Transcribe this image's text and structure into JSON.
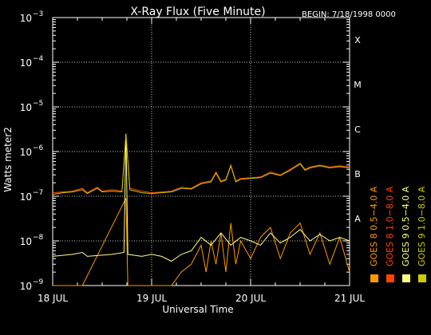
{
  "chart_data": {
    "type": "line",
    "title": "X-Ray Flux (Five Minute)",
    "begin_label": "BEGIN: 7/18/1998 0000",
    "ylabel": "Watts meter2",
    "xlabel": "Universal Time",
    "yscale": "log",
    "ylim": [
      1e-09,
      0.001
    ],
    "xlim": [
      0,
      3
    ],
    "x_ticks": [
      {
        "value": 0,
        "label": "18 JUL"
      },
      {
        "value": 1,
        "label": "19 JUL"
      },
      {
        "value": 2,
        "label": "20 JUL"
      },
      {
        "value": 3,
        "label": "21 JUL"
      }
    ],
    "y_ticks": [
      {
        "exp": -9,
        "base": "10",
        "sup": "−9"
      },
      {
        "exp": -8,
        "base": "10",
        "sup": "−8"
      },
      {
        "exp": -7,
        "base": "10",
        "sup": "−7"
      },
      {
        "exp": -6,
        "base": "10",
        "sup": "−6"
      },
      {
        "exp": -5,
        "base": "10",
        "sup": "−5"
      },
      {
        "exp": -4,
        "base": "10",
        "sup": "−4"
      },
      {
        "exp": -3,
        "base": "10",
        "sup": "−3"
      }
    ],
    "flare_classes": [
      {
        "label": "A",
        "exp": -8
      },
      {
        "label": "B",
        "exp": -7
      },
      {
        "label": "C",
        "exp": -6
      },
      {
        "label": "M",
        "exp": -5
      },
      {
        "label": "X",
        "exp": -4
      }
    ],
    "grid": "dotted",
    "series": [
      {
        "name": "GOES 8 1.0−8.0 A",
        "color": "#ff4400",
        "points": [
          [
            0,
            1.2e-07
          ],
          [
            0.1,
            1.25e-07
          ],
          [
            0.2,
            1.3e-07
          ],
          [
            0.3,
            1.5e-07
          ],
          [
            0.35,
            1.2e-07
          ],
          [
            0.45,
            1.6e-07
          ],
          [
            0.5,
            1.3e-07
          ],
          [
            0.6,
            1.4e-07
          ],
          [
            0.7,
            1.3e-07
          ],
          [
            0.74,
            2.5e-06
          ],
          [
            0.78,
            1.5e-07
          ],
          [
            0.9,
            1.3e-07
          ],
          [
            1.0,
            1.2e-07
          ],
          [
            1.1,
            1.25e-07
          ],
          [
            1.2,
            1.3e-07
          ],
          [
            1.3,
            1.6e-07
          ],
          [
            1.4,
            1.5e-07
          ],
          [
            1.5,
            2e-07
          ],
          [
            1.6,
            2.2e-07
          ],
          [
            1.65,
            3.5e-07
          ],
          [
            1.7,
            2.2e-07
          ],
          [
            1.75,
            2.4e-07
          ],
          [
            1.8,
            5e-07
          ],
          [
            1.85,
            2.2e-07
          ],
          [
            1.9,
            2.5e-07
          ],
          [
            2.0,
            2.6e-07
          ],
          [
            2.1,
            2.7e-07
          ],
          [
            2.2,
            3.5e-07
          ],
          [
            2.3,
            3e-07
          ],
          [
            2.4,
            4e-07
          ],
          [
            2.5,
            5.5e-07
          ],
          [
            2.55,
            4e-07
          ],
          [
            2.6,
            4.5e-07
          ],
          [
            2.7,
            5e-07
          ],
          [
            2.8,
            4.5e-07
          ],
          [
            2.9,
            4.8e-07
          ],
          [
            3.0,
            4.5e-07
          ]
        ]
      },
      {
        "name": "GOES 8 0.5−4.0 A",
        "color": "#ff9900",
        "points": [
          [
            0,
            1e-09
          ],
          [
            0.3,
            1e-09
          ],
          [
            0.74,
            9e-08
          ],
          [
            0.76,
            1e-09
          ],
          [
            1.0,
            1e-09
          ],
          [
            1.2,
            1e-09
          ],
          [
            1.3,
            2e-09
          ],
          [
            1.4,
            3e-09
          ],
          [
            1.5,
            8e-09
          ],
          [
            1.55,
            2e-09
          ],
          [
            1.6,
            1e-08
          ],
          [
            1.65,
            3e-09
          ],
          [
            1.7,
            1.5e-08
          ],
          [
            1.75,
            2e-09
          ],
          [
            1.8,
            2.5e-08
          ],
          [
            1.85,
            3e-09
          ],
          [
            1.9,
            1e-08
          ],
          [
            2.0,
            4e-09
          ],
          [
            2.1,
            1.2e-08
          ],
          [
            2.2,
            2e-08
          ],
          [
            2.3,
            4e-09
          ],
          [
            2.4,
            1.5e-08
          ],
          [
            2.5,
            2.5e-08
          ],
          [
            2.6,
            5e-09
          ],
          [
            2.7,
            1.5e-08
          ],
          [
            2.8,
            3e-09
          ],
          [
            2.9,
            1.2e-08
          ],
          [
            3.0,
            2e-09
          ]
        ]
      },
      {
        "name": "GOES 9 0.5−4.0 A",
        "color": "#ffff88",
        "points": [
          [
            0,
            4.5e-09
          ],
          [
            0.2,
            5e-09
          ],
          [
            0.3,
            5.5e-09
          ],
          [
            0.35,
            4.5e-09
          ],
          [
            0.5,
            4.8e-09
          ],
          [
            0.6,
            5e-09
          ],
          [
            0.72,
            5.5e-09
          ],
          [
            0.74,
            2.5e-06
          ],
          [
            0.76,
            5e-09
          ],
          [
            0.9,
            4.5e-09
          ],
          [
            1.0,
            5e-09
          ],
          [
            1.1,
            4.5e-09
          ],
          [
            1.2,
            3.5e-09
          ],
          [
            1.3,
            5e-09
          ],
          [
            1.4,
            6e-09
          ],
          [
            1.5,
            1.2e-08
          ],
          [
            1.6,
            8e-09
          ],
          [
            1.7,
            1.5e-08
          ],
          [
            1.8,
            8e-09
          ],
          [
            1.9,
            1.2e-08
          ],
          [
            2.0,
            1e-08
          ],
          [
            2.1,
            8e-09
          ],
          [
            2.2,
            1.5e-08
          ],
          [
            2.3,
            9e-09
          ],
          [
            2.4,
            1.2e-08
          ],
          [
            2.5,
            1.8e-08
          ],
          [
            2.6,
            1e-08
          ],
          [
            2.7,
            1.4e-08
          ],
          [
            2.8,
            1e-08
          ],
          [
            2.9,
            1.2e-08
          ],
          [
            3.0,
            1e-08
          ]
        ]
      },
      {
        "name": "GOES 9 1.0−8.0 A",
        "color": "#cccc00",
        "points": [
          [
            0,
            1.1e-07
          ],
          [
            0.1,
            1.2e-07
          ],
          [
            0.2,
            1.25e-07
          ],
          [
            0.3,
            1.4e-07
          ],
          [
            0.35,
            1.15e-07
          ],
          [
            0.45,
            1.5e-07
          ],
          [
            0.5,
            1.25e-07
          ],
          [
            0.6,
            1.3e-07
          ],
          [
            0.7,
            1.25e-07
          ],
          [
            0.74,
            2.4e-06
          ],
          [
            0.78,
            1.4e-07
          ],
          [
            0.9,
            1.2e-07
          ],
          [
            1.0,
            1.15e-07
          ],
          [
            1.1,
            1.2e-07
          ],
          [
            1.2,
            1.25e-07
          ],
          [
            1.3,
            1.5e-07
          ],
          [
            1.4,
            1.45e-07
          ],
          [
            1.5,
            1.9e-07
          ],
          [
            1.6,
            2.1e-07
          ],
          [
            1.65,
            3.3e-07
          ],
          [
            1.7,
            2.1e-07
          ],
          [
            1.75,
            2.3e-07
          ],
          [
            1.8,
            4.8e-07
          ],
          [
            1.85,
            2.1e-07
          ],
          [
            1.9,
            2.4e-07
          ],
          [
            2.0,
            2.5e-07
          ],
          [
            2.1,
            2.6e-07
          ],
          [
            2.2,
            3.3e-07
          ],
          [
            2.3,
            2.9e-07
          ],
          [
            2.4,
            3.8e-07
          ],
          [
            2.5,
            5.3e-07
          ],
          [
            2.55,
            3.8e-07
          ],
          [
            2.6,
            4.3e-07
          ],
          [
            2.7,
            4.8e-07
          ],
          [
            2.8,
            4.3e-07
          ],
          [
            2.9,
            4.6e-07
          ],
          [
            3.0,
            4.3e-07
          ]
        ]
      }
    ],
    "legend_placement": "right",
    "legend_order": [
      1,
      0,
      2,
      3
    ]
  }
}
